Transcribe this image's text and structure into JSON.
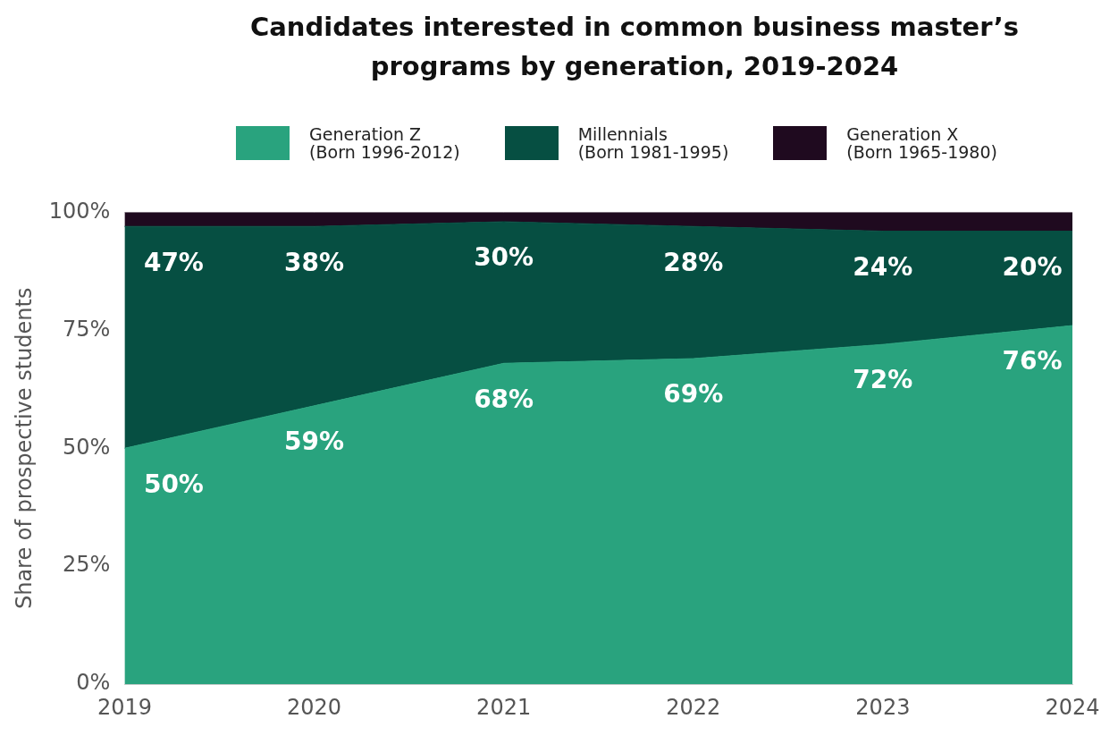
{
  "chart_data": {
    "type": "area",
    "title": "Candidates interested in common business master’s\nprograms by generation, 2019-2024",
    "ylabel": "Share of prospective students",
    "categories": [
      "2019",
      "2020",
      "2021",
      "2022",
      "2023",
      "2024"
    ],
    "stacked": true,
    "ylim": [
      0,
      100
    ],
    "yticks": [
      {
        "value": 0,
        "label": "0%"
      },
      {
        "value": 25,
        "label": "25%"
      },
      {
        "value": 50,
        "label": "50%"
      },
      {
        "value": 75,
        "label": "75%"
      },
      {
        "value": 100,
        "label": "100%"
      }
    ],
    "grid": false,
    "legend": "top",
    "series": [
      {
        "name": "Generation Z\n(Born 1996-2012)",
        "color": "#29a37e",
        "values": [
          50,
          59,
          68,
          69,
          72,
          76
        ],
        "value_labels": [
          "50%",
          "59%",
          "68%",
          "69%",
          "72%",
          "76%"
        ]
      },
      {
        "name": "Millennials\n(Born 1981-1995)",
        "color": "#064f42",
        "values": [
          47,
          38,
          30,
          28,
          24,
          20
        ],
        "value_labels": [
          "47%",
          "38%",
          "30%",
          "28%",
          "24%",
          "20%"
        ]
      },
      {
        "name": "Generation X\n(Born 1965-1980)",
        "color": "#1f0a1f",
        "values": [
          3,
          3,
          2,
          3,
          4,
          4
        ]
      }
    ]
  }
}
